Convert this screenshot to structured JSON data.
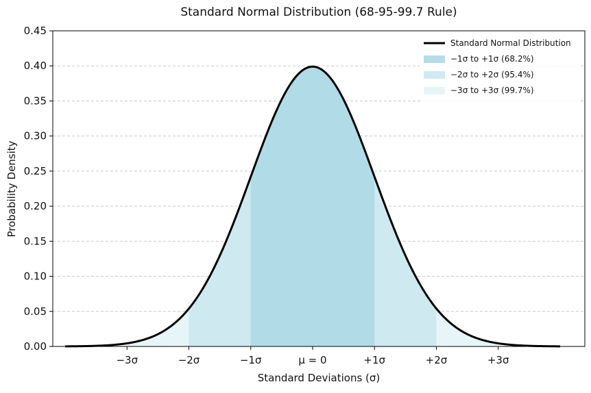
{
  "chart_data": {
    "type": "area",
    "title": "Standard Normal Distribution (68-95-99.7 Rule)",
    "xlabel": "Standard Deviations (σ)",
    "ylabel": "Probability Density",
    "xlim": [
      -4.2,
      4.4
    ],
    "ylim": [
      0,
      0.45
    ],
    "grid": "y-dashed",
    "legend_position": "top-right",
    "x_ticks": [
      {
        "value": -3,
        "label": "−3σ"
      },
      {
        "value": -2,
        "label": "−2σ"
      },
      {
        "value": -1,
        "label": "−1σ"
      },
      {
        "value": 0,
        "label": "μ = 0"
      },
      {
        "value": 1,
        "label": "+1σ"
      },
      {
        "value": 2,
        "label": "+2σ"
      },
      {
        "value": 3,
        "label": "+3σ"
      }
    ],
    "y_ticks": [
      {
        "value": 0.0,
        "label": "0.00"
      },
      {
        "value": 0.05,
        "label": "0.05"
      },
      {
        "value": 0.1,
        "label": "0.10"
      },
      {
        "value": 0.15,
        "label": "0.15"
      },
      {
        "value": 0.2,
        "label": "0.20"
      },
      {
        "value": 0.25,
        "label": "0.25"
      },
      {
        "value": 0.3,
        "label": "0.30"
      },
      {
        "value": 0.35,
        "label": "0.35"
      },
      {
        "value": 0.4,
        "label": "0.40"
      },
      {
        "value": 0.45,
        "label": "0.45"
      }
    ],
    "curve": {
      "name": "Standard Normal Distribution",
      "color": "#000000",
      "x_range": [
        -4,
        4
      ],
      "mean": 0,
      "std": 1
    },
    "bands": [
      {
        "name": "−1σ to +1σ (68.2%)",
        "from": -1,
        "to": 1,
        "color": "#add8e6"
      },
      {
        "name": "−2σ to +2σ (95.4%)",
        "from": -2,
        "to": 2,
        "color": "#c9e6ee"
      },
      {
        "name": "−3σ to +3σ (99.7%)",
        "from": -3,
        "to": 3,
        "color": "#e4f3f7"
      }
    ]
  }
}
